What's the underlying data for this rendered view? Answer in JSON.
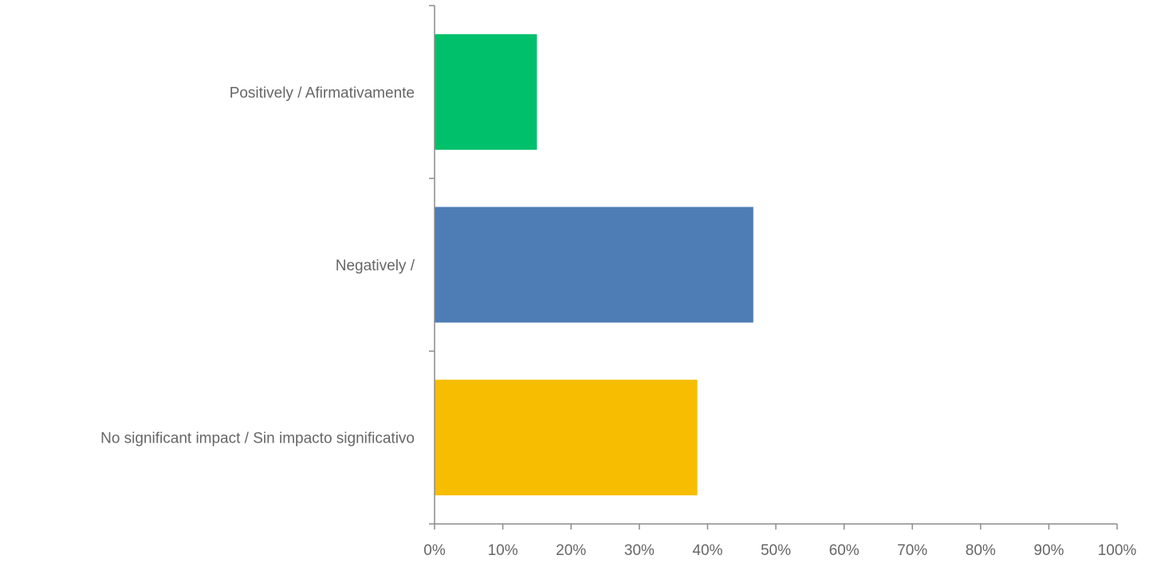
{
  "chart_data": {
    "type": "bar",
    "orientation": "horizontal",
    "categories": [
      "Positively / Afirmativamente",
      "Negatively /",
      "No significant impact / Sin impacto significativo"
    ],
    "values": [
      15,
      46.7,
      38.5
    ],
    "colors": [
      "#00c06b",
      "#4e7cb4",
      "#f7bd00"
    ],
    "xlim": [
      0,
      100
    ],
    "xticks": [
      0,
      10,
      20,
      30,
      40,
      50,
      60,
      70,
      80,
      90,
      100
    ],
    "xtick_labels": [
      "0%",
      "10%",
      "20%",
      "30%",
      "40%",
      "50%",
      "60%",
      "70%",
      "80%",
      "90%",
      "100%"
    ],
    "grid": false,
    "legend": "none"
  }
}
